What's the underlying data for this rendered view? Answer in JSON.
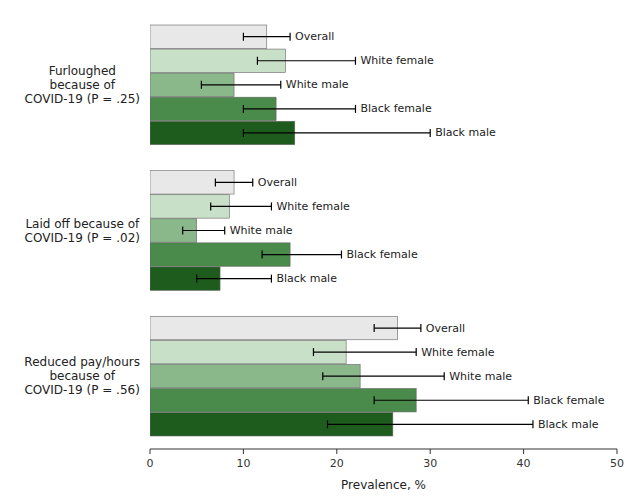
{
  "chart_data": {
    "type": "bar",
    "orientation": "horizontal",
    "categories": [
      "Furloughed\nbecause of\nCOVID‑19 (P = .25)",
      "Laid off because of\nCOVID‑19 (P = .02)",
      "Reduced pay/hours\nbecause of\nCOVID‑19 (P = .56)"
    ],
    "series": [
      {
        "name": "Overall",
        "color": "#e8e8e8",
        "values": [
          12.5,
          9.0,
          26.5
        ],
        "error_low": [
          2.5,
          2.0,
          2.5
        ],
        "error_high": [
          2.5,
          2.0,
          2.5
        ]
      },
      {
        "name": "White female",
        "color": "#c8dfc8",
        "values": [
          14.5,
          8.5,
          21.0
        ],
        "error_low": [
          3.0,
          2.0,
          3.5
        ],
        "error_high": [
          7.5,
          4.5,
          7.5
        ]
      },
      {
        "name": "White male",
        "color": "#8ab88a",
        "values": [
          9.0,
          5.0,
          22.5
        ],
        "error_low": [
          3.5,
          1.5,
          4.0
        ],
        "error_high": [
          5.0,
          3.0,
          9.0
        ]
      },
      {
        "name": "Black female",
        "color": "#4a8a4a",
        "values": [
          13.5,
          15.0,
          28.5
        ],
        "error_low": [
          3.5,
          3.0,
          4.5
        ],
        "error_high": [
          8.5,
          5.5,
          12.0
        ]
      },
      {
        "name": "Black male",
        "color": "#1e5c1e",
        "values": [
          15.5,
          7.5,
          26.0
        ],
        "error_low": [
          5.5,
          2.5,
          7.0
        ],
        "error_high": [
          14.5,
          5.5,
          15.0
        ]
      }
    ],
    "xlabel": "Prevalence, %",
    "xlim": [
      0,
      50
    ],
    "xticks": [
      0,
      10,
      20,
      30,
      40,
      50
    ],
    "grid": false
  }
}
